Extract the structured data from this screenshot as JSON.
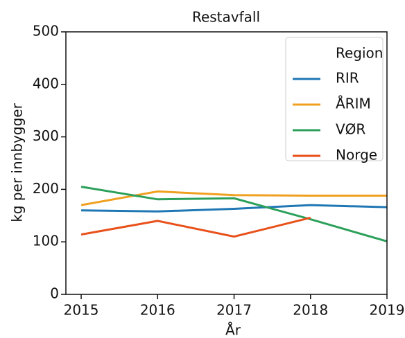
{
  "chart_data": {
    "type": "line",
    "title": "Restavfall",
    "x_label": "År",
    "y_label": "kg per innbygger",
    "x": [
      2015,
      2016,
      2017,
      2018,
      2019
    ],
    "series": [
      {
        "name": "RIR",
        "color": "#1f77b4",
        "values": [
          160,
          158,
          163,
          170,
          166
        ]
      },
      {
        "name": "ÅRIM",
        "color": "#f0a020",
        "values": [
          170,
          196,
          189,
          188,
          188
        ]
      },
      {
        "name": "VØR",
        "color": "#2ca05a",
        "values": [
          205,
          181,
          183,
          143,
          101
        ]
      },
      {
        "name": "Norge",
        "color": "#e8501a",
        "values": [
          114,
          140,
          110,
          146,
          null
        ]
      }
    ],
    "legend_title": "Region",
    "legend": "upper right",
    "xlim": [
      2014.8,
      2019
    ],
    "xticks": [
      2015,
      2016,
      2017,
      2018,
      2019
    ],
    "ylim": [
      0,
      500
    ],
    "yticks": [
      0,
      100,
      200,
      300,
      400,
      500
    ]
  }
}
